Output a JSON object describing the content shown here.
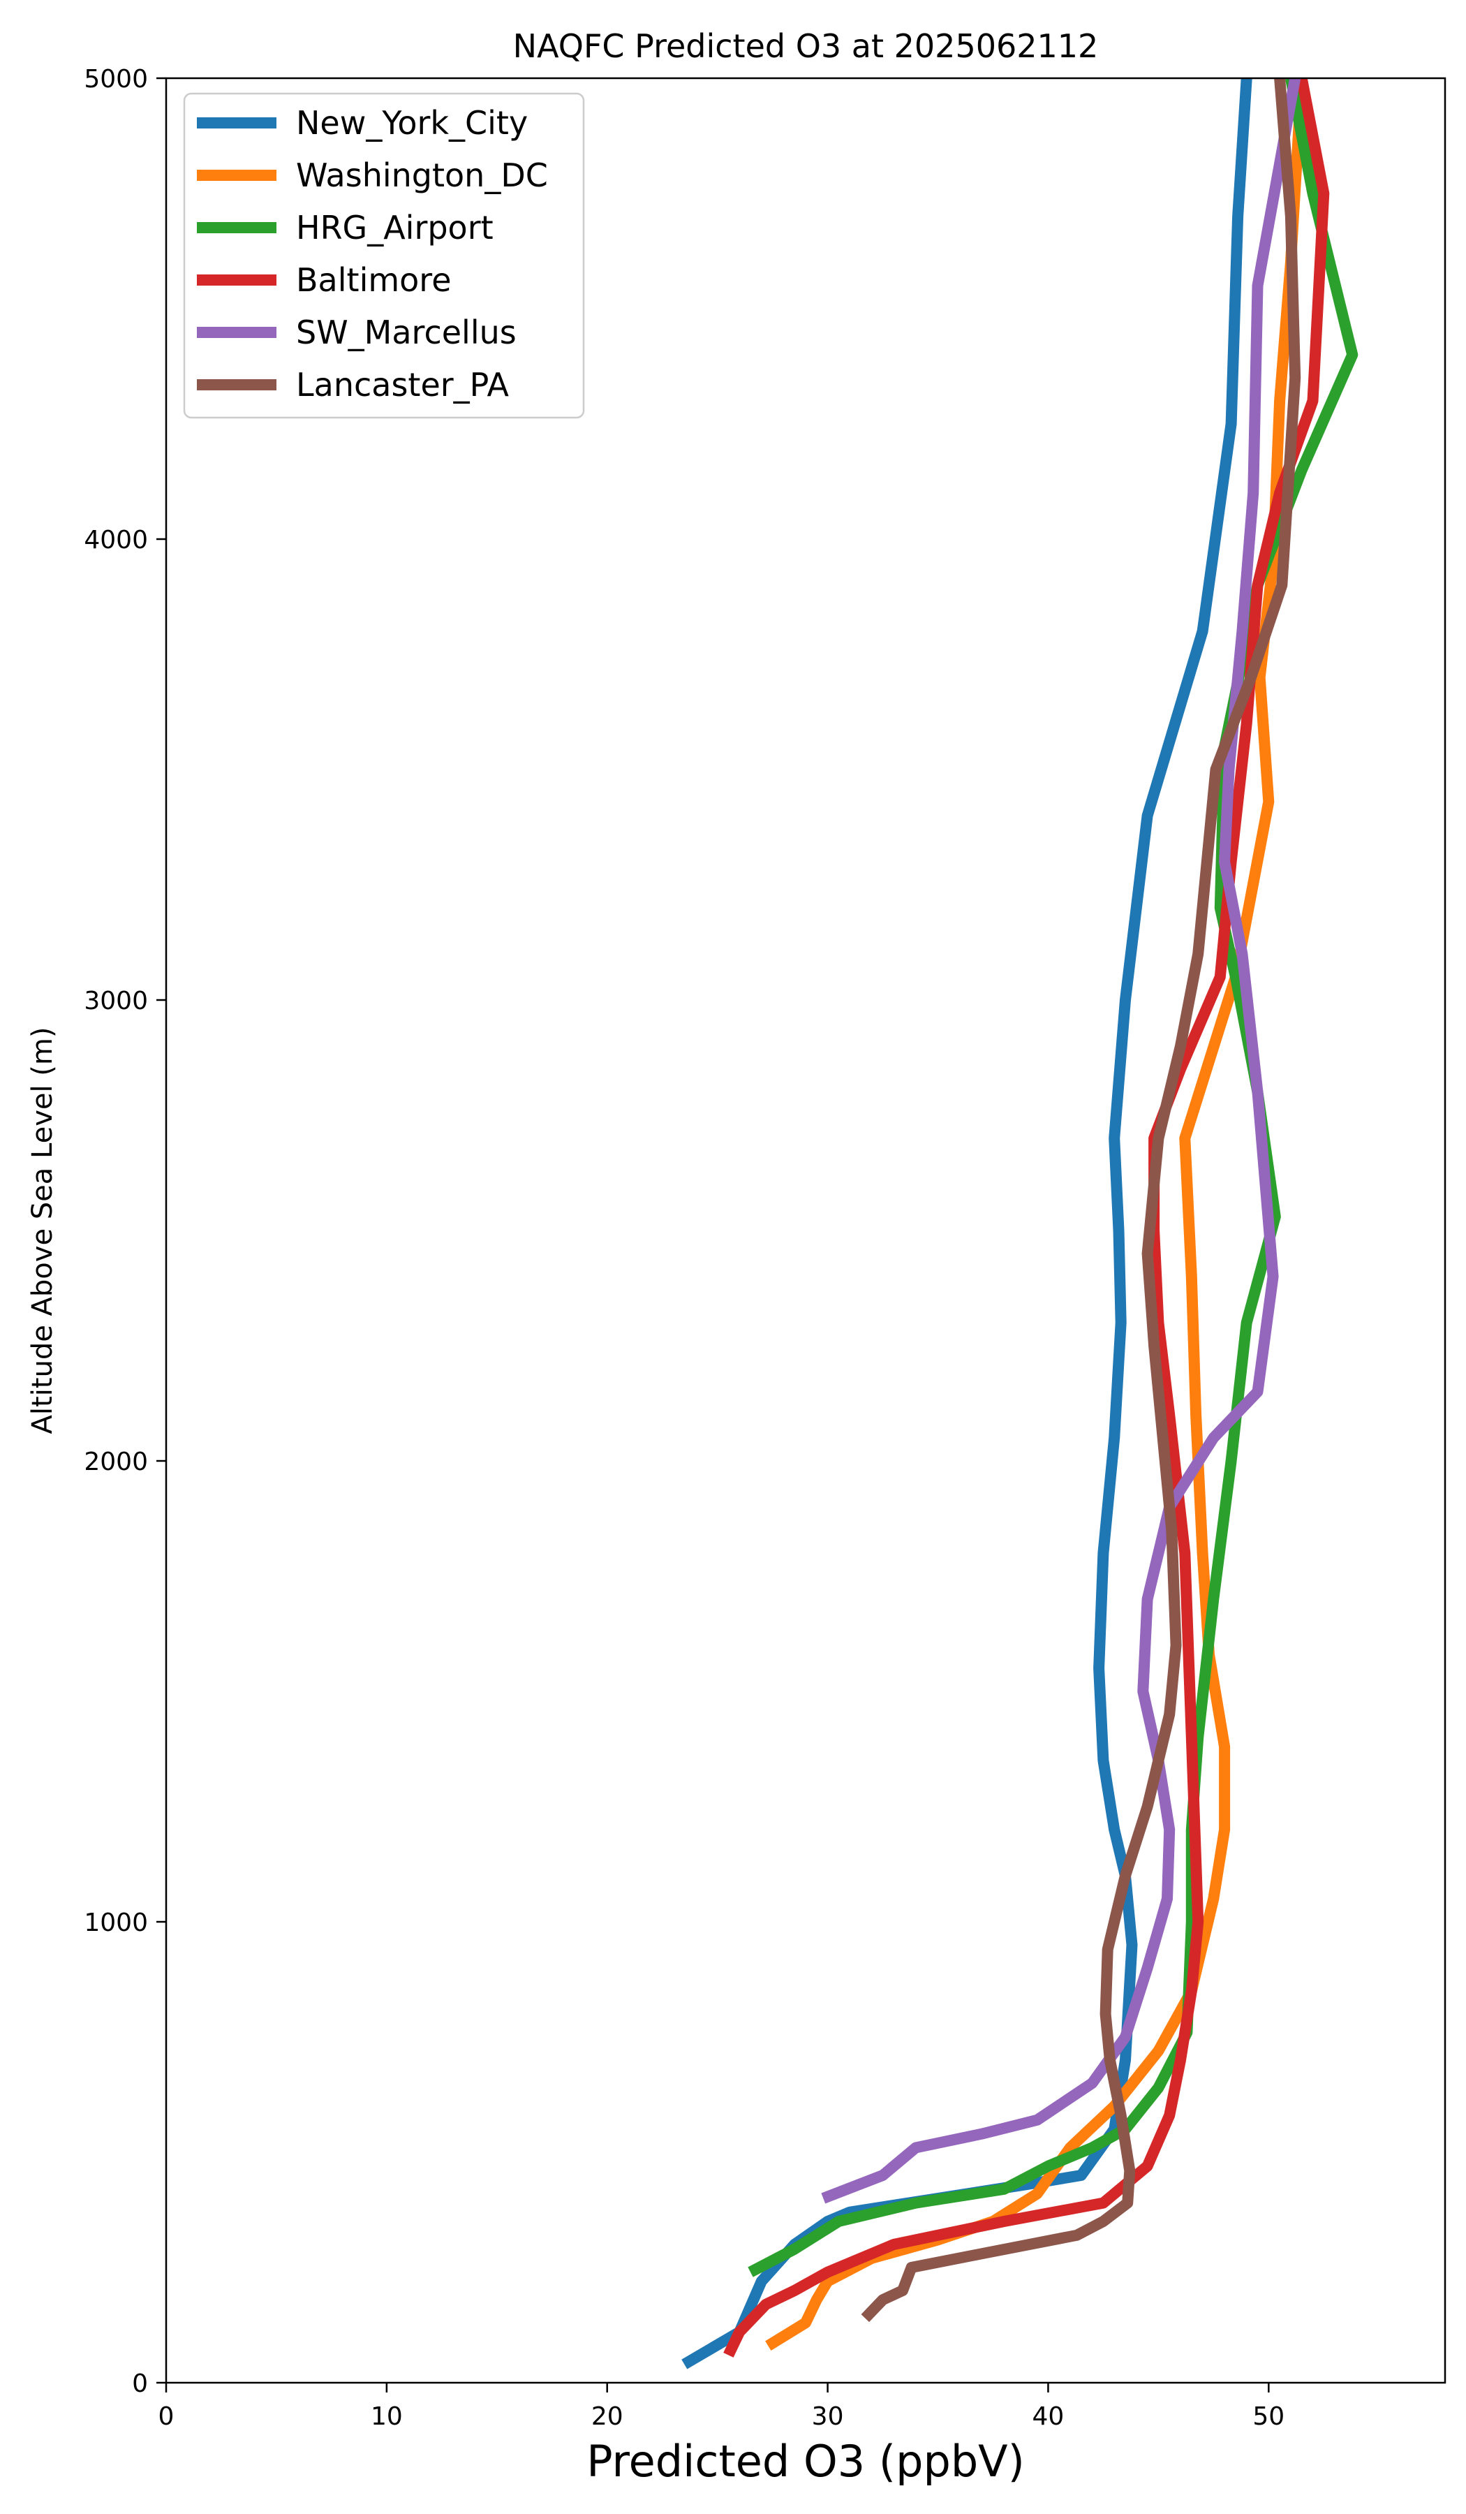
{
  "chart_data": {
    "type": "line",
    "title": "NAQFC Predicted O3 at 2025062112",
    "xlabel": "Predicted O3 (ppbV)",
    "ylabel": "Altitude Above Sea Level (m)",
    "xlim": [
      0,
      58
    ],
    "ylim": [
      0,
      5000
    ],
    "x_ticks": [
      0,
      10,
      20,
      30,
      40,
      50
    ],
    "y_ticks": [
      0,
      1000,
      2000,
      3000,
      4000,
      5000
    ],
    "grid": false,
    "legend_position": "top-left",
    "series": [
      {
        "name": "New_York_City",
        "color": "#1f77b4",
        "points": [
          [
            23.5,
            40
          ],
          [
            26,
            110
          ],
          [
            27,
            220
          ],
          [
            28.5,
            300
          ],
          [
            30,
            350
          ],
          [
            31,
            370
          ],
          [
            35,
            400
          ],
          [
            39,
            430
          ],
          [
            41.5,
            450
          ],
          [
            43,
            550
          ],
          [
            43.5,
            700
          ],
          [
            43.8,
            950
          ],
          [
            43.5,
            1100
          ],
          [
            43,
            1200
          ],
          [
            42.5,
            1350
          ],
          [
            42.3,
            1550
          ],
          [
            42.5,
            1800
          ],
          [
            43,
            2050
          ],
          [
            43.3,
            2300
          ],
          [
            43.2,
            2500
          ],
          [
            43,
            2700
          ],
          [
            43.5,
            3000
          ],
          [
            44.5,
            3400
          ],
          [
            47,
            3800
          ],
          [
            48.3,
            4250
          ],
          [
            48.6,
            4700
          ],
          [
            49,
            5000
          ]
        ]
      },
      {
        "name": "Washington_DC",
        "color": "#ff7f0e",
        "points": [
          [
            27.3,
            80
          ],
          [
            29,
            130
          ],
          [
            29.5,
            180
          ],
          [
            30,
            220
          ],
          [
            32,
            270
          ],
          [
            35,
            310
          ],
          [
            37.5,
            350
          ],
          [
            39.5,
            410
          ],
          [
            41,
            510
          ],
          [
            43,
            600
          ],
          [
            45,
            720
          ],
          [
            46.5,
            850
          ],
          [
            47.5,
            1050
          ],
          [
            48,
            1200
          ],
          [
            48,
            1380
          ],
          [
            47.3,
            1580
          ],
          [
            47,
            1800
          ],
          [
            46.7,
            2100
          ],
          [
            46.5,
            2400
          ],
          [
            46.2,
            2700
          ],
          [
            48.5,
            3050
          ],
          [
            50,
            3430
          ],
          [
            49.6,
            3700
          ],
          [
            50.2,
            3950
          ],
          [
            50.5,
            4300
          ],
          [
            51,
            4600
          ],
          [
            51.5,
            5000
          ]
        ]
      },
      {
        "name": "HRG_Airport",
        "color": "#2ca02c",
        "points": [
          [
            26.5,
            240
          ],
          [
            28.5,
            290
          ],
          [
            30.5,
            350
          ],
          [
            34,
            390
          ],
          [
            38,
            420
          ],
          [
            40,
            470
          ],
          [
            42,
            510
          ],
          [
            43.5,
            550
          ],
          [
            45,
            640
          ],
          [
            46.3,
            760
          ],
          [
            46.5,
            1000
          ],
          [
            46.5,
            1200
          ],
          [
            46.8,
            1400
          ],
          [
            47.5,
            1700
          ],
          [
            48.3,
            2000
          ],
          [
            49,
            2300
          ],
          [
            50.3,
            2530
          ],
          [
            49.5,
            2800
          ],
          [
            48.5,
            3050
          ],
          [
            47.8,
            3200
          ],
          [
            48,
            3550
          ],
          [
            49.5,
            3900
          ],
          [
            51.5,
            4150
          ],
          [
            53.8,
            4400
          ],
          [
            52,
            4750
          ],
          [
            51,
            5000
          ]
        ]
      },
      {
        "name": "Baltimore",
        "color": "#d62728",
        "points": [
          [
            25.5,
            60
          ],
          [
            26,
            110
          ],
          [
            27.2,
            170
          ],
          [
            28.5,
            200
          ],
          [
            30,
            240
          ],
          [
            33,
            300
          ],
          [
            38,
            350
          ],
          [
            42.5,
            390
          ],
          [
            44.5,
            470
          ],
          [
            45.5,
            580
          ],
          [
            46,
            700
          ],
          [
            46.5,
            850
          ],
          [
            46.8,
            1000
          ],
          [
            46.5,
            1400
          ],
          [
            46.2,
            1800
          ],
          [
            45.5,
            2100
          ],
          [
            45,
            2300
          ],
          [
            44.8,
            2500
          ],
          [
            44.8,
            2700
          ],
          [
            46,
            2850
          ],
          [
            47.8,
            3050
          ],
          [
            48.3,
            3300
          ],
          [
            49,
            3600
          ],
          [
            49.5,
            3900
          ],
          [
            50.5,
            4100
          ],
          [
            52,
            4300
          ],
          [
            52.5,
            4750
          ],
          [
            51.5,
            5000
          ]
        ]
      },
      {
        "name": "SW_Marcellus",
        "color": "#9467bd",
        "points": [
          [
            29.8,
            400
          ],
          [
            32.5,
            450
          ],
          [
            34,
            510
          ],
          [
            37,
            540
          ],
          [
            39.5,
            570
          ],
          [
            42,
            650
          ],
          [
            43.5,
            750
          ],
          [
            44.5,
            900
          ],
          [
            45.4,
            1050
          ],
          [
            45.5,
            1200
          ],
          [
            45,
            1350
          ],
          [
            44.3,
            1500
          ],
          [
            44.5,
            1700
          ],
          [
            45.5,
            1900
          ],
          [
            47.5,
            2050
          ],
          [
            49.5,
            2150
          ],
          [
            50.2,
            2400
          ],
          [
            49.5,
            2800
          ],
          [
            48.8,
            3100
          ],
          [
            48,
            3300
          ],
          [
            48.2,
            3500
          ],
          [
            48.8,
            3800
          ],
          [
            49.3,
            4100
          ],
          [
            49.5,
            4550
          ],
          [
            51.2,
            5000
          ]
        ]
      },
      {
        "name": "Lancaster_PA",
        "color": "#8c564b",
        "points": [
          [
            31.7,
            140
          ],
          [
            32.5,
            180
          ],
          [
            33.4,
            200
          ],
          [
            33.8,
            250
          ],
          [
            37,
            280
          ],
          [
            41.3,
            320
          ],
          [
            42.5,
            350
          ],
          [
            43.6,
            390
          ],
          [
            43.7,
            460
          ],
          [
            43.3,
            580
          ],
          [
            42.8,
            700
          ],
          [
            42.6,
            800
          ],
          [
            42.7,
            940
          ],
          [
            43.5,
            1100
          ],
          [
            44.5,
            1250
          ],
          [
            45.5,
            1450
          ],
          [
            45.8,
            1600
          ],
          [
            45.6,
            1850
          ],
          [
            45.2,
            2050
          ],
          [
            44.8,
            2250
          ],
          [
            44.5,
            2450
          ],
          [
            45,
            2700
          ],
          [
            46,
            2900
          ],
          [
            46.8,
            3100
          ],
          [
            47.6,
            3500
          ],
          [
            49.2,
            3700
          ],
          [
            50.6,
            3900
          ],
          [
            51.2,
            4350
          ],
          [
            51,
            4700
          ],
          [
            50.5,
            5000
          ]
        ]
      }
    ]
  }
}
